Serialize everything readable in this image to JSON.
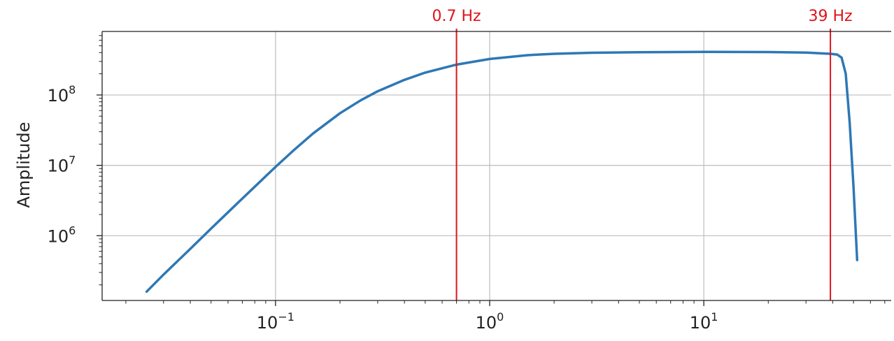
{
  "chart_data": {
    "type": "line",
    "title": "",
    "xlabel": "",
    "ylabel": "Amplitude",
    "xscale": "log",
    "yscale": "log",
    "xlim": [
      0.0155,
      75
    ],
    "ylim": [
      120000,
      800000000
    ],
    "grid": true,
    "line_color": "#2e78b5",
    "marker_color": "#e0141c",
    "x_ticks": [
      {
        "value": 0.1,
        "base": "10",
        "exp": "−1"
      },
      {
        "value": 1,
        "base": "10",
        "exp": "0"
      },
      {
        "value": 10,
        "base": "10",
        "exp": "1"
      }
    ],
    "y_ticks": [
      {
        "value": 1000000,
        "base": "10",
        "exp": "6"
      },
      {
        "value": 10000000,
        "base": "10",
        "exp": "7"
      },
      {
        "value": 100000000,
        "base": "10",
        "exp": "8"
      }
    ],
    "series": [
      {
        "x": [
          0.025,
          0.03,
          0.04,
          0.05,
          0.06,
          0.07,
          0.08,
          0.1,
          0.12,
          0.15,
          0.2,
          0.25,
          0.3,
          0.4,
          0.5,
          0.7,
          1,
          1.5,
          2,
          3,
          5,
          10,
          20,
          30,
          39,
          42,
          44,
          46,
          48,
          50,
          52
        ],
        "y": [
          160000,
          280000,
          650000,
          1260000,
          2150000,
          3370000,
          4970000,
          9500000,
          15800000,
          28500000,
          55000000,
          84000000,
          113000000,
          164000000,
          208000000,
          270000000,
          325000000,
          368000000,
          385000000,
          398000000,
          405000000,
          410000000,
          408000000,
          400000000,
          385000000,
          375000000,
          340000000,
          200000000,
          40000000,
          5000000,
          450000
        ]
      }
    ],
    "markers": [
      {
        "x": 0.7,
        "label": "0.7 Hz"
      },
      {
        "x": 39,
        "label": "39 Hz"
      }
    ]
  }
}
